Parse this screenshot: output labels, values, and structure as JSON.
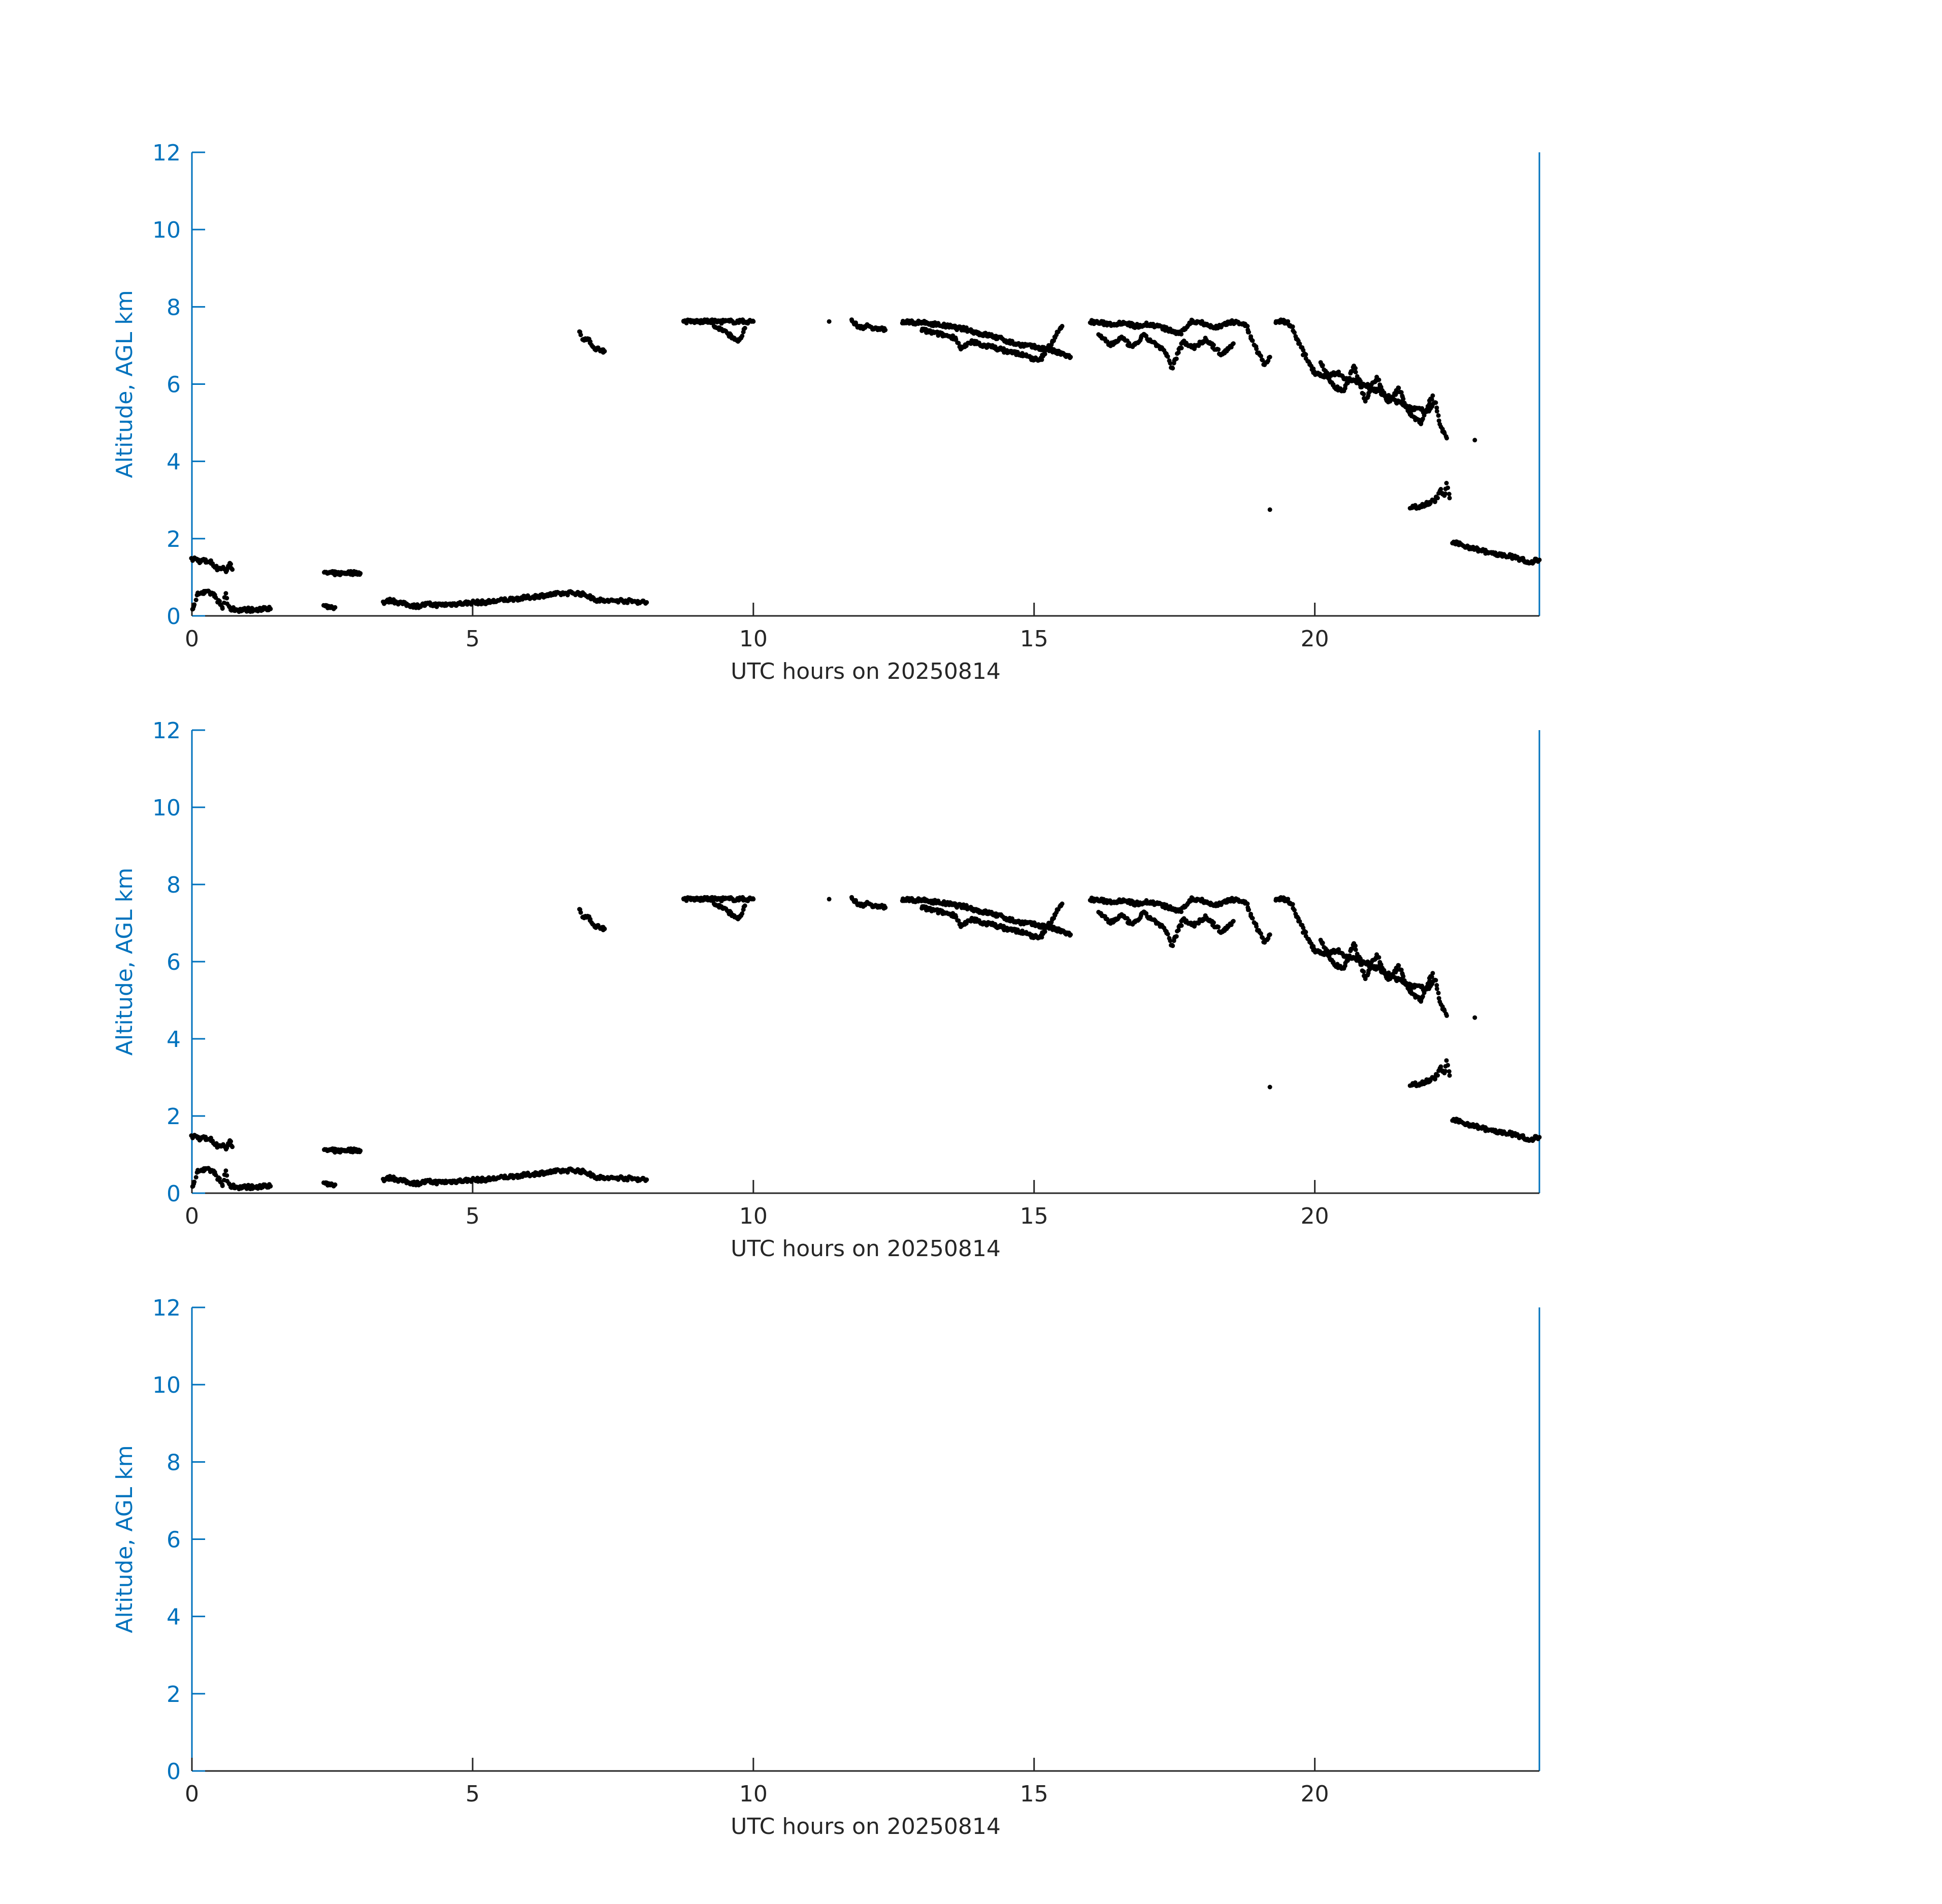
{
  "colors": {
    "axis": "#0072BD",
    "xaxis": "#262626",
    "marker": "#000000",
    "background": "#ffffff"
  },
  "chart_data": [
    {
      "type": "scatter",
      "xlabel": "UTC hours on 20250814",
      "ylabel": "Altitude, AGL km",
      "xlim": [
        0,
        24
      ],
      "ylim": [
        0,
        12
      ],
      "xticks": [
        "0",
        "5",
        "10",
        "15",
        "20"
      ],
      "yticks": [
        "0",
        "2",
        "4",
        "6",
        "8",
        "10",
        "12"
      ],
      "grid": false,
      "series": [
        {
          "marker": "dot",
          "lines": [
            [
              0.0,
              1.45,
              0.05,
              1.48,
              0.1,
              1.45,
              0.15,
              1.4,
              0.2,
              1.45,
              0.25,
              1.4,
              0.3,
              1.42,
              0.35,
              1.38,
              0.4,
              1.3,
              0.45,
              1.22,
              0.55,
              1.25,
              0.6,
              1.15,
              0.65,
              1.3,
              0.7,
              1.35,
              0.72,
              1.2
            ],
            [
              0.0,
              0.2,
              0.05,
              0.25,
              0.1,
              0.62,
              0.2,
              0.6,
              0.3,
              0.6,
              0.4,
              0.55,
              0.45,
              0.4,
              0.5,
              0.3,
              0.55,
              0.2,
              0.6,
              0.6,
              0.65,
              0.2,
              0.7,
              0.18,
              0.8,
              0.16,
              0.9,
              0.15,
              1.0,
              0.17,
              1.1,
              0.15,
              1.2,
              0.15,
              1.3,
              0.22,
              1.4,
              0.18
            ],
            [
              2.35,
              1.1,
              2.45,
              1.11,
              2.55,
              1.1,
              2.65,
              1.1,
              2.75,
              1.12,
              2.85,
              1.11,
              2.95,
              1.12,
              3.0,
              1.1
            ],
            [
              2.35,
              0.25,
              2.45,
              0.24,
              2.55,
              0.22
            ],
            [
              3.4,
              0.35,
              3.55,
              0.4,
              3.8,
              0.3,
              4.0,
              0.25,
              4.2,
              0.3,
              4.4,
              0.28,
              4.6,
              0.3,
              4.8,
              0.32,
              5.0,
              0.35,
              5.2,
              0.35,
              5.4,
              0.38,
              5.6,
              0.42,
              5.8,
              0.45,
              6.0,
              0.48,
              6.2,
              0.52,
              6.4,
              0.55,
              6.6,
              0.58,
              6.8,
              0.6,
              7.0,
              0.55,
              7.2,
              0.42,
              7.4,
              0.38,
              7.6,
              0.4,
              7.8,
              0.38,
              8.0,
              0.36,
              8.1,
              0.35
            ],
            [
              6.9,
              7.4,
              6.95,
              7.2,
              7.1,
              7.1,
              7.15,
              6.95,
              7.25,
              6.9,
              7.35,
              6.85
            ],
            [
              8.75,
              7.62,
              9.0,
              7.62,
              9.25,
              7.62,
              9.5,
              7.62,
              9.75,
              7.62,
              10.0,
              7.62
            ],
            [
              9.3,
              7.5,
              9.45,
              7.4,
              9.55,
              7.3,
              9.65,
              7.2,
              9.75,
              7.1,
              9.85,
              7.45
            ],
            [
              11.35,
              7.62
            ],
            [
              11.75,
              7.62,
              11.85,
              7.5,
              11.95,
              7.45,
              12.05,
              7.55,
              12.15,
              7.4,
              12.25,
              7.45,
              12.35,
              7.4
            ],
            [
              12.65,
              7.6,
              12.85,
              7.6,
              13.05,
              7.58,
              13.25,
              7.55,
              13.45,
              7.5,
              13.65,
              7.45,
              13.85,
              7.4,
              14.05,
              7.3,
              14.25,
              7.25,
              14.45,
              7.15,
              14.65,
              7.05,
              14.85,
              7.0,
              15.05,
              6.95,
              15.25,
              6.9,
              15.45,
              6.8,
              15.65,
              6.7
            ],
            [
              13.0,
              7.4,
              13.3,
              7.3,
              13.6,
              7.2,
              13.7,
              6.9,
              13.9,
              7.1,
              14.1,
              7.0,
              14.3,
              6.95,
              14.5,
              6.85,
              14.7,
              6.8,
              14.9,
              6.7,
              15.1,
              6.6,
              15.5,
              7.5
            ],
            [
              16.0,
              7.62,
              16.2,
              7.58,
              16.4,
              7.55,
              16.6,
              7.6,
              16.8,
              7.5,
              17.0,
              7.55,
              17.2,
              7.5,
              17.4,
              7.4,
              17.6,
              7.3,
              17.8,
              7.62,
              18.0,
              7.6,
              18.2,
              7.45,
              18.4,
              7.55,
              18.6,
              7.62,
              18.8,
              7.5
            ],
            [
              16.15,
              7.3,
              16.35,
              7.0,
              16.55,
              7.2,
              16.75,
              6.95,
              16.95,
              7.25,
              17.15,
              7.05,
              17.35,
              6.8,
              17.45,
              6.4,
              17.65,
              7.1,
              17.85,
              6.95,
              18.05,
              7.15,
              18.25,
              6.9,
              18.35,
              6.75,
              18.55,
              7.05
            ],
            [
              18.8,
              7.4,
              18.9,
              7.1,
              19.0,
              6.8,
              19.1,
              6.5,
              19.2,
              6.7
            ],
            [
              19.2,
              2.75
            ],
            [
              19.3,
              7.62,
              19.5,
              7.62,
              19.6,
              7.45,
              19.7,
              7.1,
              19.8,
              6.8,
              19.9,
              6.55,
              20.0,
              6.3,
              20.2,
              6.2,
              20.4,
              6.3,
              20.6,
              6.1,
              20.8,
              6.05,
              21.0,
              5.9,
              21.2,
              5.75,
              21.4,
              5.6,
              21.6,
              5.45,
              21.8,
              5.35,
              22.0,
              5.3,
              22.15,
              5.5,
              22.25,
              4.9,
              22.35,
              4.6
            ],
            [
              20.1,
              6.6,
              20.3,
              6.0,
              20.5,
              5.8,
              20.7,
              6.45,
              20.9,
              5.6,
              21.1,
              6.2,
              21.3,
              5.5,
              21.5,
              5.9,
              21.7,
              5.2,
              21.9,
              5.0,
              22.1,
              5.7
            ],
            [
              22.85,
              4.55
            ],
            [
              21.7,
              2.8,
              21.9,
              2.85,
              22.05,
              2.95,
              22.15,
              3.0,
              22.25,
              3.25,
              22.3,
              3.1,
              22.35,
              3.4,
              22.4,
              3.05
            ],
            [
              22.45,
              1.9,
              22.7,
              1.8,
              22.95,
              1.7,
              23.2,
              1.6,
              23.45,
              1.55,
              23.7,
              1.45,
              23.8,
              1.35,
              23.9,
              1.42,
              24.0,
              1.45
            ]
          ]
        }
      ]
    },
    {
      "type": "scatter",
      "xlabel": "UTC hours on 20250814",
      "ylabel": "Altitude, AGL km",
      "xlim": [
        0,
        24
      ],
      "ylim": [
        0,
        12
      ],
      "xticks": [
        "0",
        "5",
        "10",
        "15",
        "20"
      ],
      "yticks": [
        "0",
        "2",
        "4",
        "6",
        "8",
        "10",
        "12"
      ],
      "grid": false,
      "series": [
        {
          "marker": "dot",
          "same_as_panel": 0
        }
      ]
    },
    {
      "type": "scatter",
      "xlabel": "UTC hours on 20250814",
      "ylabel": "Altitude, AGL km",
      "xlim": [
        0,
        24
      ],
      "ylim": [
        0,
        12
      ],
      "xticks": [
        "0",
        "5",
        "10",
        "15",
        "20"
      ],
      "yticks": [
        "0",
        "2",
        "4",
        "6",
        "8",
        "10",
        "12"
      ],
      "grid": false,
      "series": []
    }
  ]
}
